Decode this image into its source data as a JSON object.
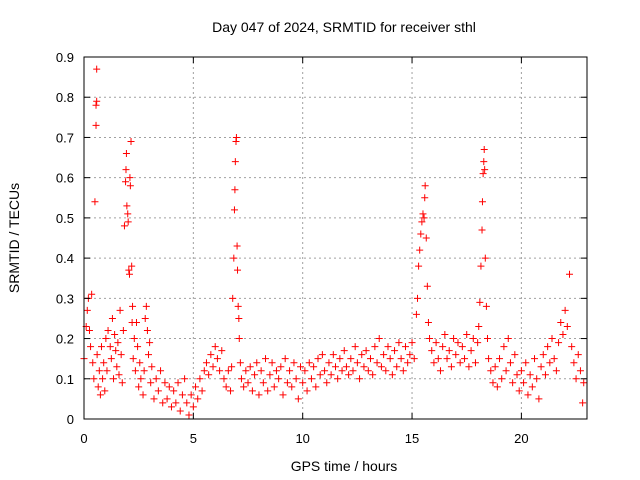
{
  "chart_data": {
    "type": "scatter",
    "title": "Day 047 of 2024, SRMTID for receiver sthl",
    "xlabel": "GPS time / hours",
    "ylabel": "SRMTID / TECUs",
    "xlim": [
      0,
      23
    ],
    "ylim": [
      0,
      0.9
    ],
    "xticks": [
      0,
      5,
      10,
      15,
      20
    ],
    "xtick_labels": [
      "0",
      "5",
      "10",
      "15",
      "20"
    ],
    "yticks": [
      0,
      0.1,
      0.2,
      0.3,
      0.4,
      0.5,
      0.6,
      0.7,
      0.8,
      0.9
    ],
    "ytick_labels": [
      "0",
      "0.1",
      "0.2",
      "0.3",
      "0.4",
      "0.5",
      "0.6",
      "0.7",
      "0.8",
      "0.9"
    ],
    "grid": true,
    "marker": "+",
    "marker_color": "#ff0000",
    "series": [
      {
        "name": "SRMTID",
        "points": [
          [
            0.0,
            0.15
          ],
          [
            0.1,
            0.23
          ],
          [
            0.15,
            0.27
          ],
          [
            0.2,
            0.3
          ],
          [
            0.25,
            0.22
          ],
          [
            0.3,
            0.18
          ],
          [
            0.35,
            0.31
          ],
          [
            0.4,
            0.14
          ],
          [
            0.45,
            0.1
          ],
          [
            0.5,
            0.54
          ],
          [
            0.55,
            0.73
          ],
          [
            0.55,
            0.78
          ],
          [
            0.58,
            0.79
          ],
          [
            0.58,
            0.87
          ],
          [
            0.6,
            0.16
          ],
          [
            0.65,
            0.08
          ],
          [
            0.7,
            0.12
          ],
          [
            0.75,
            0.06
          ],
          [
            0.8,
            0.18
          ],
          [
            0.85,
            0.1
          ],
          [
            0.9,
            0.14
          ],
          [
            0.95,
            0.07
          ],
          [
            1.0,
            0.2
          ],
          [
            1.05,
            0.12
          ],
          [
            1.1,
            0.22
          ],
          [
            1.2,
            0.18
          ],
          [
            1.25,
            0.15
          ],
          [
            1.3,
            0.25
          ],
          [
            1.35,
            0.1
          ],
          [
            1.4,
            0.21
          ],
          [
            1.45,
            0.17
          ],
          [
            1.5,
            0.13
          ],
          [
            1.55,
            0.19
          ],
          [
            1.6,
            0.11
          ],
          [
            1.65,
            0.27
          ],
          [
            1.7,
            0.16
          ],
          [
            1.75,
            0.09
          ],
          [
            1.8,
            0.22
          ],
          [
            1.85,
            0.48
          ],
          [
            1.9,
            0.59
          ],
          [
            1.92,
            0.62
          ],
          [
            1.94,
            0.66
          ],
          [
            1.96,
            0.53
          ],
          [
            2.0,
            0.51
          ],
          [
            2.02,
            0.49
          ],
          [
            2.05,
            0.37
          ],
          [
            2.08,
            0.36
          ],
          [
            2.1,
            0.6
          ],
          [
            2.12,
            0.58
          ],
          [
            2.15,
            0.69
          ],
          [
            2.18,
            0.38
          ],
          [
            2.2,
            0.24
          ],
          [
            2.22,
            0.28
          ],
          [
            2.25,
            0.15
          ],
          [
            2.3,
            0.2
          ],
          [
            2.35,
            0.12
          ],
          [
            2.4,
            0.24
          ],
          [
            2.45,
            0.18
          ],
          [
            2.5,
            0.08
          ],
          [
            2.55,
            0.14
          ],
          [
            2.6,
            0.1
          ],
          [
            2.7,
            0.06
          ],
          [
            2.75,
            0.12
          ],
          [
            2.8,
            0.25
          ],
          [
            2.85,
            0.28
          ],
          [
            2.9,
            0.22
          ],
          [
            2.95,
            0.16
          ],
          [
            3.0,
            0.19
          ],
          [
            3.05,
            0.09
          ],
          [
            3.1,
            0.13
          ],
          [
            3.2,
            0.05
          ],
          [
            3.3,
            0.1
          ],
          [
            3.4,
            0.07
          ],
          [
            3.5,
            0.12
          ],
          [
            3.6,
            0.04
          ],
          [
            3.7,
            0.09
          ],
          [
            3.8,
            0.05
          ],
          [
            3.9,
            0.08
          ],
          [
            4.0,
            0.03
          ],
          [
            4.1,
            0.07
          ],
          [
            4.2,
            0.04
          ],
          [
            4.3,
            0.09
          ],
          [
            4.4,
            0.02
          ],
          [
            4.5,
            0.06
          ],
          [
            4.6,
            0.1
          ],
          [
            4.7,
            0.04
          ],
          [
            4.8,
            0.01
          ],
          [
            4.9,
            0.06
          ],
          [
            5.0,
            0.03
          ],
          [
            5.1,
            0.08
          ],
          [
            5.2,
            0.05
          ],
          [
            5.3,
            0.1
          ],
          [
            5.4,
            0.07
          ],
          [
            5.5,
            0.12
          ],
          [
            5.6,
            0.14
          ],
          [
            5.7,
            0.11
          ],
          [
            5.8,
            0.16
          ],
          [
            5.9,
            0.13
          ],
          [
            6.0,
            0.18
          ],
          [
            6.1,
            0.15
          ],
          [
            6.2,
            0.12
          ],
          [
            6.3,
            0.17
          ],
          [
            6.4,
            0.1
          ],
          [
            6.5,
            0.08
          ],
          [
            6.6,
            0.12
          ],
          [
            6.7,
            0.07
          ],
          [
            6.75,
            0.13
          ],
          [
            6.8,
            0.3
          ],
          [
            6.85,
            0.4
          ],
          [
            6.88,
            0.52
          ],
          [
            6.9,
            0.57
          ],
          [
            6.92,
            0.64
          ],
          [
            6.95,
            0.69
          ],
          [
            6.97,
            0.7
          ],
          [
            7.0,
            0.43
          ],
          [
            7.02,
            0.37
          ],
          [
            7.05,
            0.28
          ],
          [
            7.08,
            0.25
          ],
          [
            7.1,
            0.2
          ],
          [
            7.15,
            0.14
          ],
          [
            7.2,
            0.1
          ],
          [
            7.3,
            0.08
          ],
          [
            7.4,
            0.12
          ],
          [
            7.5,
            0.09
          ],
          [
            7.6,
            0.13
          ],
          [
            7.7,
            0.07
          ],
          [
            7.8,
            0.11
          ],
          [
            7.9,
            0.14
          ],
          [
            8.0,
            0.06
          ],
          [
            8.1,
            0.12
          ],
          [
            8.2,
            0.09
          ],
          [
            8.3,
            0.15
          ],
          [
            8.4,
            0.07
          ],
          [
            8.5,
            0.11
          ],
          [
            8.6,
            0.14
          ],
          [
            8.7,
            0.08
          ],
          [
            8.8,
            0.12
          ],
          [
            8.9,
            0.1
          ],
          [
            9.0,
            0.13
          ],
          [
            9.1,
            0.06
          ],
          [
            9.2,
            0.15
          ],
          [
            9.3,
            0.09
          ],
          [
            9.4,
            0.12
          ],
          [
            9.5,
            0.08
          ],
          [
            9.6,
            0.14
          ],
          [
            9.7,
            0.1
          ],
          [
            9.8,
            0.05
          ],
          [
            9.9,
            0.13
          ],
          [
            10.0,
            0.09
          ],
          [
            10.1,
            0.12
          ],
          [
            10.2,
            0.07
          ],
          [
            10.3,
            0.14
          ],
          [
            10.4,
            0.1
          ],
          [
            10.5,
            0.13
          ],
          [
            10.6,
            0.08
          ],
          [
            10.7,
            0.15
          ],
          [
            10.8,
            0.11
          ],
          [
            10.9,
            0.16
          ],
          [
            11.0,
            0.12
          ],
          [
            11.1,
            0.09
          ],
          [
            11.2,
            0.14
          ],
          [
            11.3,
            0.11
          ],
          [
            11.4,
            0.16
          ],
          [
            11.5,
            0.13
          ],
          [
            11.6,
            0.1
          ],
          [
            11.7,
            0.15
          ],
          [
            11.8,
            0.12
          ],
          [
            11.9,
            0.17
          ],
          [
            12.0,
            0.13
          ],
          [
            12.1,
            0.11
          ],
          [
            12.2,
            0.15
          ],
          [
            12.3,
            0.12
          ],
          [
            12.4,
            0.18
          ],
          [
            12.5,
            0.14
          ],
          [
            12.6,
            0.1
          ],
          [
            12.7,
            0.16
          ],
          [
            12.8,
            0.13
          ],
          [
            12.9,
            0.17
          ],
          [
            13.0,
            0.12
          ],
          [
            13.1,
            0.15
          ],
          [
            13.2,
            0.11
          ],
          [
            13.3,
            0.18
          ],
          [
            13.4,
            0.14
          ],
          [
            13.5,
            0.2
          ],
          [
            13.6,
            0.13
          ],
          [
            13.7,
            0.16
          ],
          [
            13.8,
            0.12
          ],
          [
            13.9,
            0.18
          ],
          [
            14.0,
            0.15
          ],
          [
            14.1,
            0.11
          ],
          [
            14.2,
            0.17
          ],
          [
            14.3,
            0.13
          ],
          [
            14.4,
            0.19
          ],
          [
            14.5,
            0.15
          ],
          [
            14.6,
            0.12
          ],
          [
            14.7,
            0.18
          ],
          [
            14.8,
            0.14
          ],
          [
            14.9,
            0.16
          ],
          [
            15.0,
            0.19
          ],
          [
            15.1,
            0.15
          ],
          [
            15.2,
            0.26
          ],
          [
            15.25,
            0.3
          ],
          [
            15.3,
            0.38
          ],
          [
            15.35,
            0.42
          ],
          [
            15.4,
            0.46
          ],
          [
            15.45,
            0.49
          ],
          [
            15.5,
            0.51
          ],
          [
            15.55,
            0.5
          ],
          [
            15.58,
            0.55
          ],
          [
            15.6,
            0.58
          ],
          [
            15.65,
            0.45
          ],
          [
            15.7,
            0.33
          ],
          [
            15.75,
            0.24
          ],
          [
            15.8,
            0.2
          ],
          [
            15.9,
            0.17
          ],
          [
            16.0,
            0.14
          ],
          [
            16.1,
            0.19
          ],
          [
            16.2,
            0.15
          ],
          [
            16.3,
            0.12
          ],
          [
            16.4,
            0.18
          ],
          [
            16.5,
            0.21
          ],
          [
            16.6,
            0.15
          ],
          [
            16.7,
            0.17
          ],
          [
            16.8,
            0.13
          ],
          [
            16.9,
            0.2
          ],
          [
            17.0,
            0.16
          ],
          [
            17.1,
            0.19
          ],
          [
            17.2,
            0.14
          ],
          [
            17.3,
            0.18
          ],
          [
            17.4,
            0.15
          ],
          [
            17.5,
            0.21
          ],
          [
            17.6,
            0.13
          ],
          [
            17.7,
            0.17
          ],
          [
            17.8,
            0.2
          ],
          [
            17.9,
            0.14
          ],
          [
            18.0,
            0.19
          ],
          [
            18.05,
            0.23
          ],
          [
            18.1,
            0.29
          ],
          [
            18.15,
            0.38
          ],
          [
            18.2,
            0.47
          ],
          [
            18.22,
            0.54
          ],
          [
            18.25,
            0.61
          ],
          [
            18.28,
            0.64
          ],
          [
            18.3,
            0.67
          ],
          [
            18.32,
            0.62
          ],
          [
            18.35,
            0.4
          ],
          [
            18.4,
            0.28
          ],
          [
            18.45,
            0.2
          ],
          [
            18.5,
            0.15
          ],
          [
            18.6,
            0.12
          ],
          [
            18.7,
            0.09
          ],
          [
            18.8,
            0.13
          ],
          [
            18.9,
            0.08
          ],
          [
            19.0,
            0.15
          ],
          [
            19.1,
            0.1
          ],
          [
            19.2,
            0.18
          ],
          [
            19.3,
            0.12
          ],
          [
            19.4,
            0.2
          ],
          [
            19.5,
            0.14
          ],
          [
            19.6,
            0.09
          ],
          [
            19.7,
            0.16
          ],
          [
            19.8,
            0.11
          ],
          [
            19.9,
            0.07
          ],
          [
            20.0,
            0.12
          ],
          [
            20.1,
            0.09
          ],
          [
            20.2,
            0.14
          ],
          [
            20.3,
            0.06
          ],
          [
            20.4,
            0.11
          ],
          [
            20.5,
            0.08
          ],
          [
            20.6,
            0.15
          ],
          [
            20.7,
            0.1
          ],
          [
            20.8,
            0.05
          ],
          [
            20.9,
            0.13
          ],
          [
            21.0,
            0.16
          ],
          [
            21.1,
            0.11
          ],
          [
            21.2,
            0.18
          ],
          [
            21.3,
            0.14
          ],
          [
            21.4,
            0.2
          ],
          [
            21.5,
            0.15
          ],
          [
            21.6,
            0.12
          ],
          [
            21.7,
            0.19
          ],
          [
            21.8,
            0.24
          ],
          [
            21.9,
            0.21
          ],
          [
            22.0,
            0.27
          ],
          [
            22.1,
            0.23
          ],
          [
            22.2,
            0.36
          ],
          [
            22.3,
            0.18
          ],
          [
            22.4,
            0.14
          ],
          [
            22.5,
            0.1
          ],
          [
            22.6,
            0.16
          ],
          [
            22.7,
            0.12
          ],
          [
            22.8,
            0.04
          ],
          [
            22.85,
            0.09
          ]
        ]
      }
    ]
  }
}
